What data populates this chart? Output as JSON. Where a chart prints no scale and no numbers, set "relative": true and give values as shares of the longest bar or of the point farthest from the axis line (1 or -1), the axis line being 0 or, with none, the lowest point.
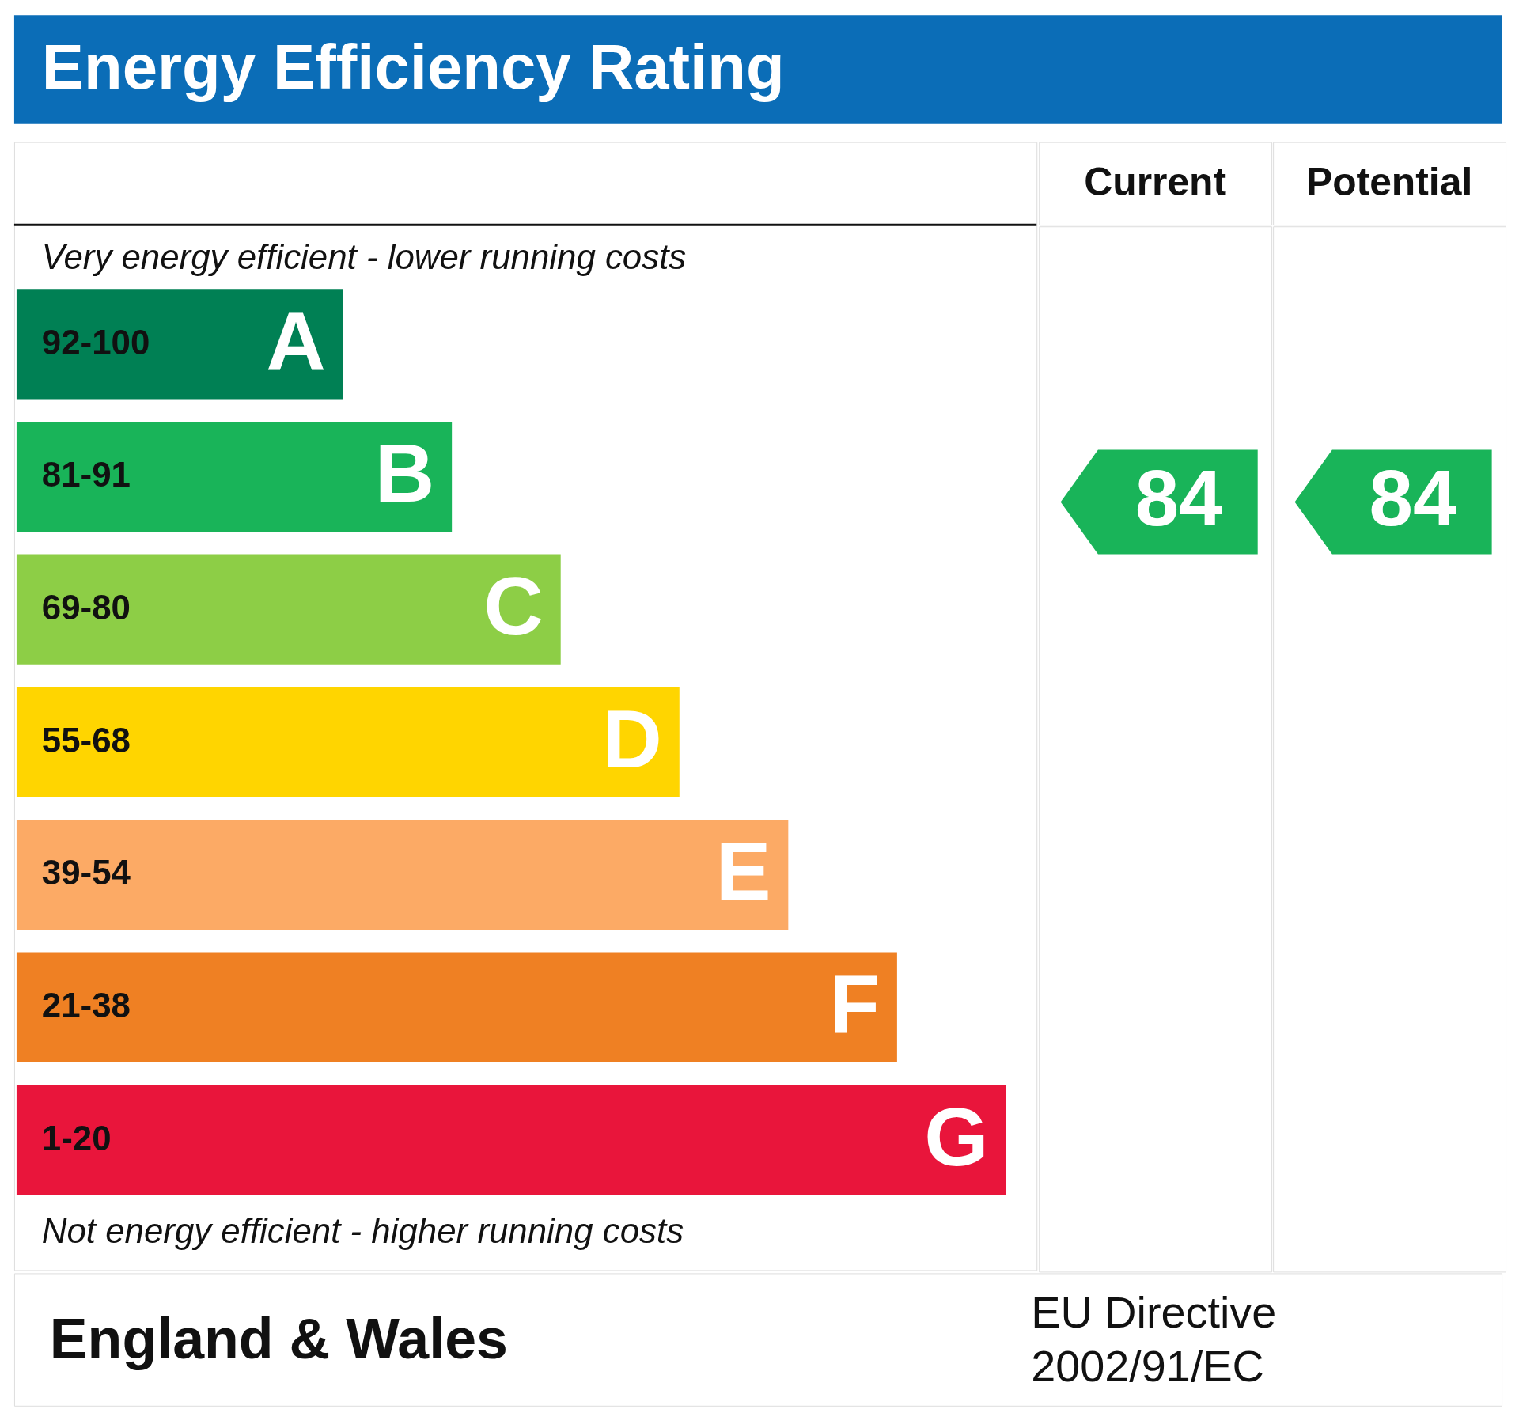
{
  "chart_data": {
    "type": "bar",
    "orientation": "horizontal",
    "relative": true,
    "title": "Energy Efficiency Rating",
    "categories": [
      "A",
      "B",
      "C",
      "D",
      "E",
      "F",
      "G"
    ],
    "values": [
      0.33,
      0.44,
      0.55,
      0.67,
      0.78,
      0.89,
      1
    ],
    "colors": [
      "#008054",
      "#19b459",
      "#8dce46",
      "#ffd500",
      "#fcaa65",
      "#ef8023",
      "#e9153b"
    ],
    "annotations": [
      "Very energy efficient - lower running costs",
      "Not energy efficient - higher running costs",
      "Current",
      "Potential",
      "84",
      "84",
      "England & Wales",
      "EU Directive",
      "2002/91/EC",
      "92-100",
      "81-91",
      "69-80",
      "55-68",
      "39-54",
      "21-38",
      "1-20"
    ]
  }
}
